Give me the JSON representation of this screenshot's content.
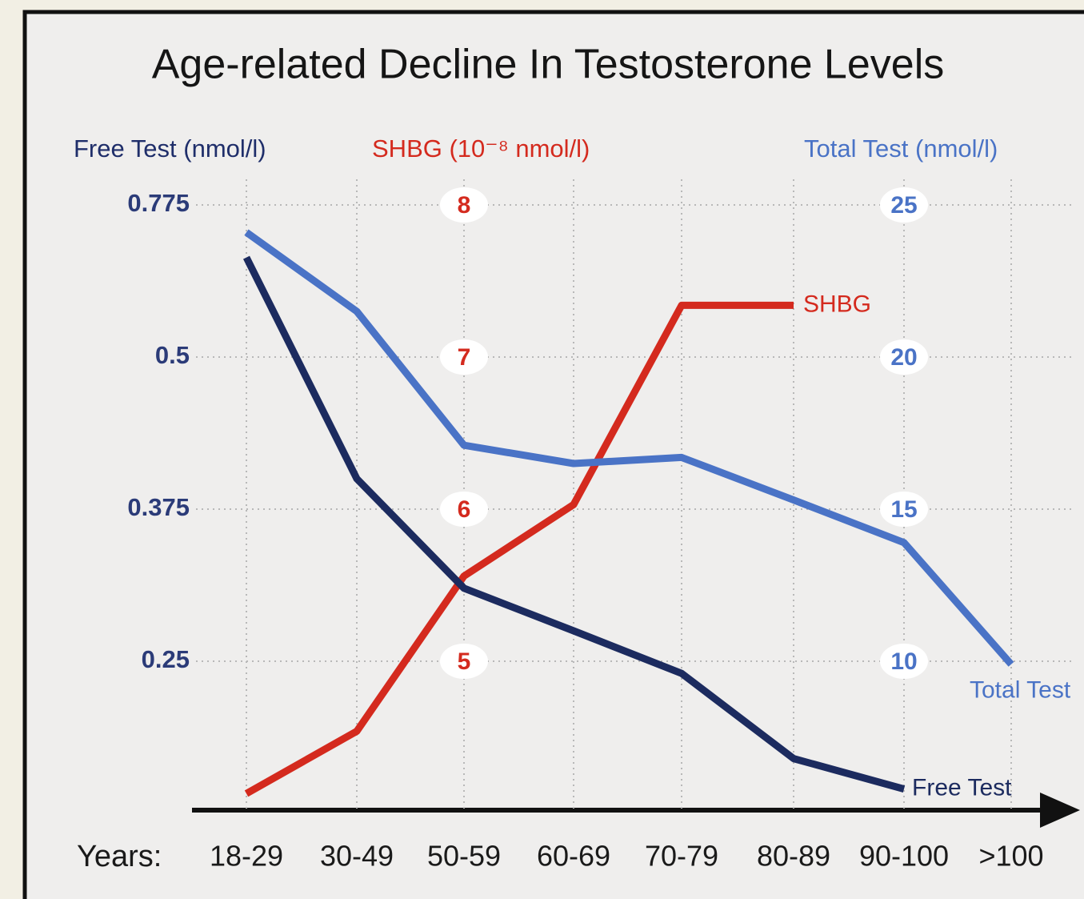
{
  "chart_data": {
    "type": "line",
    "title": "Age-related Decline In Testosterone Levels",
    "x_label": "Years:",
    "categories": [
      "18-29",
      "30-49",
      "50-59",
      "60-69",
      "70-79",
      "80-89",
      "90-100",
      ">100"
    ],
    "ylabel": "Free Test (nmol/l)",
    "ylim": [
      0.125,
      0.83
    ],
    "yticks": [
      0.25,
      0.375,
      0.5,
      0.775
    ],
    "y2label": "SHBG (10⁻⁸ nmol/l)",
    "y2lim": [
      4,
      8.2
    ],
    "y2ticks": [
      5,
      6,
      7,
      8
    ],
    "y3label": "Total Test (nmol/l)",
    "y3lim": [
      5,
      26
    ],
    "y3ticks": [
      10,
      15,
      20,
      25
    ],
    "grid": true,
    "series": [
      {
        "name": "SHBG",
        "color": "#d42a1e",
        "axis": "y2",
        "values": [
          4.13,
          4.54,
          5.56,
          6.03,
          7.34,
          7.34,
          null,
          null
        ]
      },
      {
        "name": "Total Test",
        "color": "#4a73c6",
        "axis": "y3",
        "values": [
          24.1,
          21.5,
          17.1,
          16.5,
          16.7,
          15.3,
          13.9,
          9.9
        ]
      },
      {
        "name": "Free Test",
        "color": "#1c2b5f",
        "axis": "y",
        "values": [
          0.68,
          0.4,
          0.31,
          0.275,
          0.24,
          0.17,
          0.145,
          null
        ]
      }
    ]
  }
}
